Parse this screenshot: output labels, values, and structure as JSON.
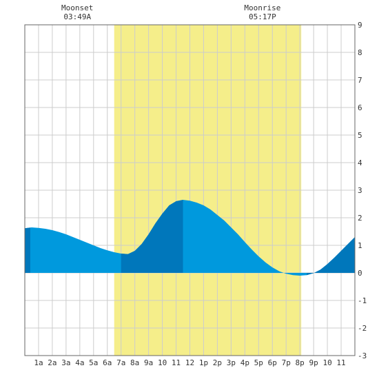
{
  "chart_data": {
    "type": "area",
    "title": "",
    "xlabel": "",
    "ylabel": "",
    "xlim": [
      0,
      24
    ],
    "ylim": [
      -3,
      9
    ],
    "y_ticks": [
      "-3",
      "-2",
      "-1",
      "0",
      "1",
      "2",
      "3",
      "4",
      "5",
      "6",
      "7",
      "8",
      "9"
    ],
    "x_ticks": [
      "1a",
      "2a",
      "3a",
      "4a",
      "5a",
      "6a",
      "7a",
      "8a",
      "9a",
      "10",
      "11",
      "12",
      "1p",
      "2p",
      "3p",
      "4p",
      "5p",
      "6p",
      "7p",
      "8p",
      "9p",
      "10",
      "11"
    ],
    "grid": true,
    "daylight": {
      "start_hour": 6.5,
      "end_hour": 20.1
    },
    "moon_events": [
      {
        "label": "Moonset",
        "time": "03:49A",
        "hour": 3.82
      },
      {
        "label": "Moonrise",
        "time": "05:17P",
        "hour": 17.28
      }
    ],
    "series": [
      {
        "x": [
          0,
          0.5,
          1,
          1.5,
          2,
          2.5,
          3,
          3.5,
          4,
          4.5,
          5,
          5.5,
          6,
          6.5,
          7,
          7.5,
          8,
          8.5,
          9,
          9.5,
          10,
          10.5,
          11,
          11.5,
          12,
          12.5,
          13,
          13.5,
          14,
          14.5,
          15,
          15.5,
          16,
          16.5,
          17,
          17.5,
          18,
          18.5,
          19,
          19.5,
          20,
          20.5,
          21,
          21.5,
          22,
          22.5,
          23,
          23.5,
          24
        ],
        "values": [
          1.62,
          1.65,
          1.63,
          1.6,
          1.55,
          1.48,
          1.4,
          1.3,
          1.2,
          1.1,
          1.0,
          0.9,
          0.82,
          0.75,
          0.7,
          0.68,
          0.8,
          1.05,
          1.4,
          1.8,
          2.15,
          2.45,
          2.6,
          2.65,
          2.62,
          2.55,
          2.45,
          2.3,
          2.1,
          1.9,
          1.65,
          1.4,
          1.12,
          0.85,
          0.6,
          0.38,
          0.2,
          0.06,
          -0.03,
          -0.08,
          -0.1,
          -0.08,
          -0.01,
          0.12,
          0.32,
          0.55,
          0.8,
          1.05,
          1.3
        ]
      }
    ],
    "colors": {
      "fill": "#0099dd",
      "fill_dark": "#0077bb",
      "daylight": "#f5ee8a",
      "grid": "#cccccc",
      "border": "#666666"
    },
    "dark_bands": [
      {
        "from": 0,
        "to": 0.4
      },
      {
        "from": 7,
        "to": 11.5
      },
      {
        "from": 20.5,
        "to": 24
      }
    ]
  }
}
